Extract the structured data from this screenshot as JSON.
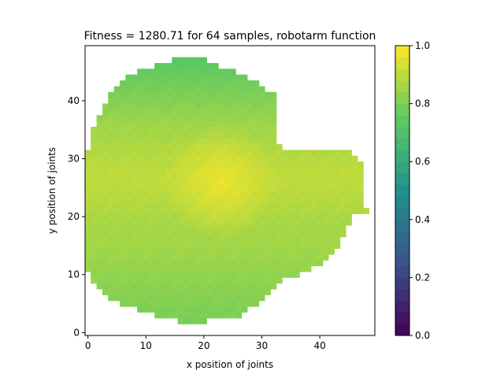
{
  "chart_data": {
    "type": "heatmap",
    "title": "Fitness = 1280.71 for 64 samples, robotarm function",
    "xlabel": "x position of joints",
    "ylabel": "y position of joints",
    "xlim": [
      -0.5,
      49.5
    ],
    "ylim": [
      -0.5,
      49.5
    ],
    "xticks": [
      "0",
      "10",
      "20",
      "30",
      "40"
    ],
    "yticks": [
      "0",
      "10",
      "20",
      "30",
      "40"
    ],
    "colormap": "viridis",
    "colorbar": {
      "range": [
        0.0,
        1.0
      ],
      "ticks": [
        "0.0",
        "0.2",
        "0.4",
        "0.6",
        "0.8",
        "1.0"
      ]
    },
    "grid": false,
    "cells_note": "",
    "field": {
      "rows": [
        {
          "y": 47,
          "x_from": 15,
          "x_to": 20,
          "value": 0.74
        },
        {
          "y": 46,
          "x_from": 12,
          "x_to": 22,
          "value": 0.75
        },
        {
          "y": 45,
          "x_from": 9,
          "x_to": 25,
          "value": 0.76
        },
        {
          "y": 44,
          "x_from": 7,
          "x_to": 27,
          "value": 0.77
        },
        {
          "y": 43,
          "x_from": 6,
          "x_to": 29,
          "value": 0.78
        },
        {
          "y": 42,
          "x_from": 5,
          "x_to": 30,
          "value": 0.79
        },
        {
          "y": 41,
          "x_from": 4,
          "x_to": 32,
          "value": 0.8
        },
        {
          "y": 40,
          "x_from": 4,
          "x_to": 32,
          "value": 0.81
        },
        {
          "y": 39,
          "x_from": 3,
          "x_to": 32,
          "value": 0.82
        },
        {
          "y": 38,
          "x_from": 3,
          "x_to": 32,
          "value": 0.83
        },
        {
          "y": 37,
          "x_from": 2,
          "x_to": 32,
          "value": 0.84
        },
        {
          "y": 36,
          "x_from": 2,
          "x_to": 32,
          "value": 0.85
        },
        {
          "y": 35,
          "x_from": 1,
          "x_to": 32,
          "value": 0.86
        },
        {
          "y": 34,
          "x_from": 1,
          "x_to": 32,
          "value": 0.86
        },
        {
          "y": 33,
          "x_from": 1,
          "x_to": 32,
          "value": 0.87
        },
        {
          "y": 32,
          "x_from": 1,
          "x_to": 33,
          "value": 0.88
        },
        {
          "y": 31,
          "x_from": 0,
          "x_to": 45,
          "value": 0.88
        },
        {
          "y": 30,
          "x_from": 0,
          "x_to": 46,
          "value": 0.89
        },
        {
          "y": 29,
          "x_from": 0,
          "x_to": 47,
          "value": 0.89
        },
        {
          "y": 28,
          "x_from": 0,
          "x_to": 47,
          "value": 0.9
        },
        {
          "y": 27,
          "x_from": 0,
          "x_to": 47,
          "value": 0.9
        },
        {
          "y": 26,
          "x_from": 0,
          "x_to": 47,
          "value": 0.9
        },
        {
          "y": 25,
          "x_from": 0,
          "x_to": 47,
          "value": 0.9
        },
        {
          "y": 24,
          "x_from": 0,
          "x_to": 47,
          "value": 0.89
        },
        {
          "y": 23,
          "x_from": 0,
          "x_to": 47,
          "value": 0.89
        },
        {
          "y": 22,
          "x_from": 0,
          "x_to": 47,
          "value": 0.88
        },
        {
          "y": 21,
          "x_from": -0.5,
          "x_to": 48,
          "value": 0.88
        },
        {
          "y": 20,
          "x_from": -0.5,
          "x_to": 45,
          "value": 0.87
        },
        {
          "y": 19,
          "x_from": -0.5,
          "x_to": 45,
          "value": 0.87
        },
        {
          "y": 18,
          "x_from": -0.5,
          "x_to": 44,
          "value": 0.86
        },
        {
          "y": 17,
          "x_from": -0.5,
          "x_to": 44,
          "value": 0.86
        },
        {
          "y": 16,
          "x_from": -0.5,
          "x_to": 43,
          "value": 0.86
        },
        {
          "y": 15,
          "x_from": -0.5,
          "x_to": 43,
          "value": 0.86
        },
        {
          "y": 14,
          "x_from": -0.5,
          "x_to": 42,
          "value": 0.85
        },
        {
          "y": 13,
          "x_from": -0.5,
          "x_to": 41,
          "value": 0.85
        },
        {
          "y": 12,
          "x_from": 0,
          "x_to": 40,
          "value": 0.84
        },
        {
          "y": 11,
          "x_from": 0,
          "x_to": 38,
          "value": 0.84
        },
        {
          "y": 10,
          "x_from": 1,
          "x_to": 36,
          "value": 0.83
        },
        {
          "y": 9,
          "x_from": 1,
          "x_to": 33,
          "value": 0.83
        },
        {
          "y": 8,
          "x_from": 2,
          "x_to": 32,
          "value": 0.82
        },
        {
          "y": 7,
          "x_from": 3,
          "x_to": 31,
          "value": 0.82
        },
        {
          "y": 6,
          "x_from": 4,
          "x_to": 30,
          "value": 0.81
        },
        {
          "y": 5,
          "x_from": 6,
          "x_to": 29,
          "value": 0.81
        },
        {
          "y": 4,
          "x_from": 9,
          "x_to": 27,
          "value": 0.8
        },
        {
          "y": 3,
          "x_from": 12,
          "x_to": 26,
          "value": 0.8
        },
        {
          "y": 2,
          "x_from": 16,
          "x_to": 20,
          "value": 0.79
        }
      ],
      "peak": {
        "x": 23,
        "y": 26,
        "value": 0.97
      }
    }
  }
}
